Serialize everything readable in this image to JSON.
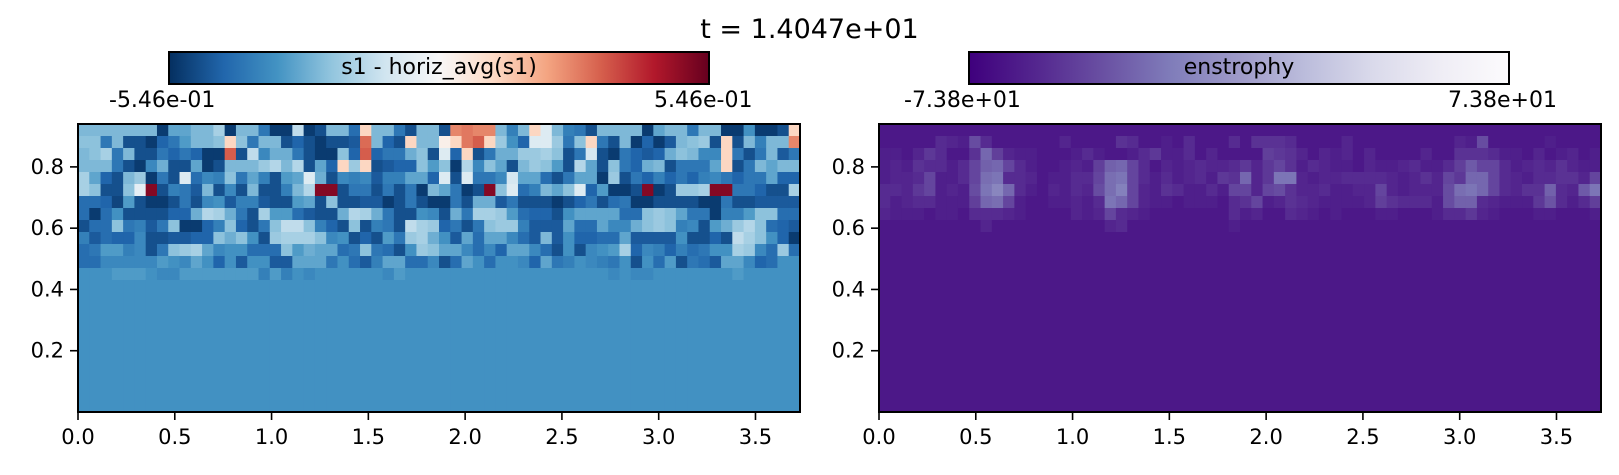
{
  "figure": {
    "suptitle": "t = 1.4047e+01"
  },
  "colors": {
    "rdbu_r": [
      "#053061",
      "#2166ac",
      "#4393c3",
      "#92c5de",
      "#d1e5f0",
      "#f7f7f7",
      "#fddbc7",
      "#f4a582",
      "#d6604d",
      "#b2182b",
      "#67001f"
    ],
    "purples_r": [
      "#3f007d",
      "#54278f",
      "#6a51a3",
      "#807dba",
      "#9e9ac8",
      "#bcbddc",
      "#dadaeb",
      "#efedf5",
      "#fcfbfd"
    ]
  },
  "chart_data": [
    {
      "type": "heatmap",
      "colorbar_label": "s1 - horiz_avg(s1)",
      "colormap": "RdBu_r",
      "vmin_label": "-5.46e-01",
      "vmax_label": "5.46e-01",
      "vmin": -0.546,
      "vmax": 0.546,
      "xlim": [
        0.0,
        3.73
      ],
      "ylim": [
        0.0,
        0.94
      ],
      "xticks": [
        0.0,
        0.5,
        1.0,
        1.5,
        2.0,
        2.5,
        3.0,
        3.5
      ],
      "xtick_labels": [
        "0.0",
        "0.5",
        "1.0",
        "1.5",
        "2.0",
        "2.5",
        "3.0",
        "3.5"
      ],
      "yticks": [
        0.2,
        0.4,
        0.6,
        0.8
      ],
      "ytick_labels": [
        "0.2",
        "0.4",
        "0.6",
        "0.8"
      ],
      "grid_cols": 64,
      "grid_rows": 24,
      "rows_top_to_bottom": [
        "ooooooobmmoorboohbbtbdoogFoohdoodMNMMoioFwoihdoooobmoohoobbkbbdF",
        "pphoddbfhloopFphoodfdbddeOofdFooBFNPFqkfwwqhpFhdobfbeopqdFdoiooM",
        "oprhoddhfhfbbPdtjnnhdbbpfPfhhnpdwfFdhnnqqrpdhvdbhfefnpojjFhdhoeh",
        "ooohdbjnddmbdoooqsosdmfFqFdeffplpbsjpmdoqpldsmdphfnodhhhmFdhomoo",
        "rmfdoqbhdwgjiphmidlmwndjijeiimmfwdwhhjvmmgdhmmbqdhfifhfijhfhhmff",
        "rpddpxXdiheodjdoddiosXXdhhdhdhbomhbdXpwgiompwflbbdXbdqqrXXhhfddr",
        "ggfcldbbdhdjkeiieddlmdpddeebdhdbbhdnnehdddbdfhdghbbddddbbhddeeee",
        "gbgkddddffnsrnhdrllgeddnsrnhddkjdnhrrqlgffdkmmmmggpqpmhhbiilppgg",
        "dggphiehpbbfipfdhpttpifdpdihdtrqfhdhpqqieeemggmjjnpqpijdlnqspgfe",
        "iegffjddeeffpnpkdqrrrpjkdfdlhqrnkemgmmjgeoekffggmeeeekddfdtrpkfb",
        "ghllijdhpqrmjkkgggplnmmghphgdkqpmmjgjfmmjgdkdjklrfjifighkkrqjgqg",
        "ggjjjjjlkjmkfkekkeemmmhkgeimmggjdgmkgkkjfmhikjihkdkgldhgemmjfgkk",
        "kkklllkjjlllllllilikjkkkkkkjlkkkkkkkkkkkkkkkkkkjkjjkkkkkkklkkkkk",
        "kkkkkkkkkkkkkkkkkkkkkkkkkkkkkkkkkkkkkkkkkkkkkkkkkkkkkkkkkkkkkkkk",
        "kkkkkkkkkkkkkkkkkkkkkkkkkkkkkkkkkkkkkkkkkkkkkkkkkkkkkkkkkkkkkkkk",
        "kkkkkkkkkkkkkkkkkkkkkkkkkkkkkkkkkkkkkkkkkkkkkkkkkkkkkkkkkkkkkkkk",
        "kkkkkkkkkkkkkkkkkkkkkkkkkkkkkkkkkkkkkkkkkkkkkkkkkkkkkkkkkkkkkkkk",
        "kkkkkkkkkkkkkkkkkkkkkkkkkkkkkkkkkkkkkkkkkkkkkkkkkkkkkkkkkkkkkkkk",
        "kkkkkkkkkkkkkkkkkkkkkkkkkkkkkkkkkkkkkkkkkkkkkkkkkkkkkkkkkkkkkkkk",
        "kkkkkkkkkkkkkkkkkkkkkkkkkkkkkkkkkkkkkkkkkkkkkkkkkkkkkkkkkkkkkkkk",
        "kkkkkkkkkkkkkkkkkkkkkkkkkkkkkkkkkkkkkkkkkkkkkkkkkkkkkkkkkkkkkkkk",
        "kkkkkkkkkkkkkkkkkkkkkkkkkkkkkkkkkkkkkkkkkkkkkkkkkkkkkkkkkkkkkkkk",
        "kkkkkkkkkkkkkkkkkkkkkkkkkkkkkkkkkkkkkkkkkkkkkkkkkkkkkkkkkkkkkkkk",
        "kkkkkkkkkkkkkkkkkkkkkkkkkkkkkkkkkkkkkkkkkkkkkkkkkkkkkkkkkkkkkkkk"
      ]
    },
    {
      "type": "heatmap",
      "colorbar_label": "enstrophy",
      "colormap": "Purples_r",
      "vmin_label": "-7.38e+01",
      "vmax_label": "7.38e+01",
      "vmin": -73.8,
      "vmax": 73.8,
      "xlim": [
        0.0,
        3.73
      ],
      "ylim": [
        0.0,
        0.94
      ],
      "xticks": [
        0.0,
        0.5,
        1.0,
        1.5,
        2.0,
        2.5,
        3.0,
        3.5
      ],
      "xtick_labels": [
        "0.0",
        "0.5",
        "1.0",
        "1.5",
        "2.0",
        "2.5",
        "3.0",
        "3.5"
      ],
      "yticks": [
        0.2,
        0.4,
        0.6,
        0.8
      ],
      "ytick_labels": [
        "0.2",
        "0.4",
        "0.6",
        "0.8"
      ],
      "grid_cols": 64,
      "grid_rows": 24,
      "rows_top_to_bottom": [
        "eeeeeeeeeeeeeeeeeeeeeeeeeeeeeeeeeeeeeeeeeeeeeeeeeeeeeeeeeeeeeeee",
        "eeeeehgfmheeeeeegeeeeiheefeheeeheiiiheeeegeeeeeeeeegfmeeeeefeeee",
        "ffegjheeiqkgffeeefhfeefhjffhegeeeekjigegfgegeeeegeeiiihffegefgef",
        "fgfihhfhlpqlhfeefgfkpqlhegfghgghjgjlifhgffegffghffhkollhfghgigff",
        "fgghlffhlrshhgeffhhlrslhfhfghfjiqgjssgfgghhhhgfgigljqqlhgfhhiigl",
        "hhgjlfgfmsvqhfegfhgmrulgfihffhfllglmigghffgglgfgggmrsqlhgiiphgos",
        "hfghhfffkqrlfeeffgfhsqlgffefffehilfgihgffffgkihhhfmpphgfffjnhfhk",
        "gfffeffehhhgfeeeegfglhgfeeeeeeehfgeehgfefeeeffeeefhhjgfeeeffeeef",
        "eeeeeeeeegeeeeeeeeeegheeeeeeeeefeeeeeeeeeeeeeeeeeeeeeeeeeeeeeeee",
        "eeeeeeeeeeeeeeeeeeeeeeeeeeeeeeeeeeeeeeeeeeeeeeeeeeeeeeeeeeeeeeee",
        "eeeeeeeeeeeeeeeeeeeeeeeeeeeeeeeeeeeeeeeeeeeeeeeeeeeeeeeeeeeeeeee",
        "eeeeeeeeeeeeeeeeeeeeeeeeeeeeeeeeeeeeeeeeeeeeeeeeeeeeeeeeeeeeeeee",
        "eeeeeeeeeeeeeeeeeeeeeeeeeeeeeeeeeeeeeeeeeeeeeeeeeeeeeeeeeeeeeeee",
        "eeeeeeeeeeeeeeeeeeeeeeeeeeeeeeeeeeeeeeeeeeeeeeeeeeeeeeeeeeeeeeee",
        "eeeeeeeeeeeeeeeeeeeeeeeeeeeeeeeeeeeeeeeeeeeeeeeeeeeeeeeeeeeeeeee",
        "eeeeeeeeeeeeeeeeeeeeeeeeeeeeeeeeeeeeeeeeeeeeeeeeeeeeeeeeeeeeeeee",
        "eeeeeeeeeeeeeeeeeeeeeeeeeeeeeeeeeeeeeeeeeeeeeeeeeeeeeeeeeeeeeeee",
        "eeeeeeeeeeeeeeeeeeeeeeeeeeeeeeeeeeeeeeeeeeeeeeeeeeeeeeeeeeeeeeee",
        "eeeeeeeeeeeeeeeeeeeeeeeeeeeeeeeeeeeeeeeeeeeeeeeeeeeeeeeeeeeeeeee",
        "eeeeeeeeeeeeeeeeeeeeeeeeeeeeeeeeeeeeeeeeeeeeeeeeeeeeeeeeeeeeeeee",
        "eeeeeeeeeeeeeeeeeeeeeeeeeeeeeeeeeeeeeeeeeeeeeeeeeeeeeeeeeeeeeeee",
        "eeeeeeeeeeeeeeeeeeeeeeeeeeeeeeeeeeeeeeeeeeeeeeeeeeeeeeeeeeeeeeee",
        "eeeeeeeeeeeeeeeeeeeeeeeeeeeeeeeeeeeeeeeeeeeeeeeeeeeeeeeeeeeeeeee",
        "eeeeeeeeeeeeeeeeeeeeeeeeeeeeeeeeeeeeeeeeeeeeeeeeeeeeeeeeeeeeeeee"
      ]
    }
  ],
  "value_code_alphabet": "abcdefghijklmnopqrstuvwxyzABCDEFGHIJKLMNOPQRSTUVWXYZ"
}
